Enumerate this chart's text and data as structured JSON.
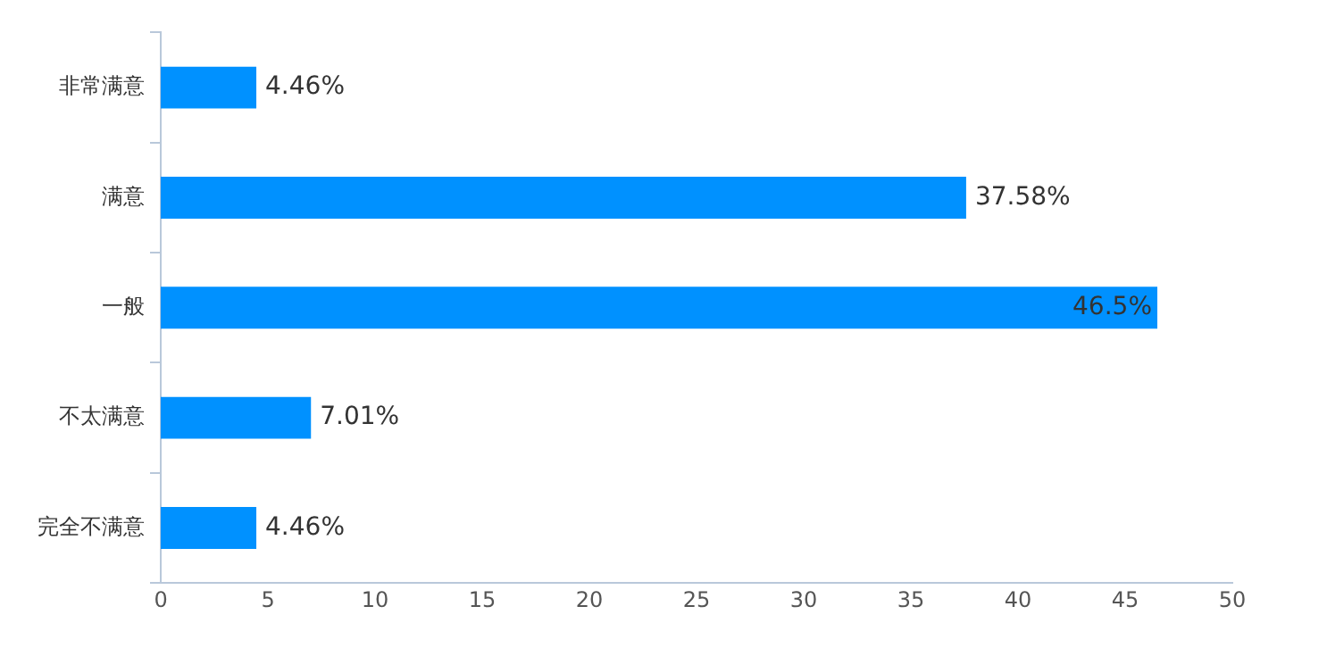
{
  "chart_data": {
    "type": "bar",
    "orientation": "horizontal",
    "categories": [
      "非常满意",
      "满意",
      "一般",
      "不太满意",
      "完全不满意"
    ],
    "values": [
      4.46,
      37.58,
      46.5,
      7.01,
      4.46
    ],
    "value_labels": [
      "4.46%",
      "37.58%",
      "46.5%",
      "7.01%",
      "4.46%"
    ],
    "color": "#0091ff",
    "xlim": [
      0,
      50
    ],
    "xticks": [
      0,
      5,
      10,
      15,
      20,
      25,
      30,
      35,
      40,
      45,
      50
    ],
    "grid": false,
    "legend": false
  }
}
